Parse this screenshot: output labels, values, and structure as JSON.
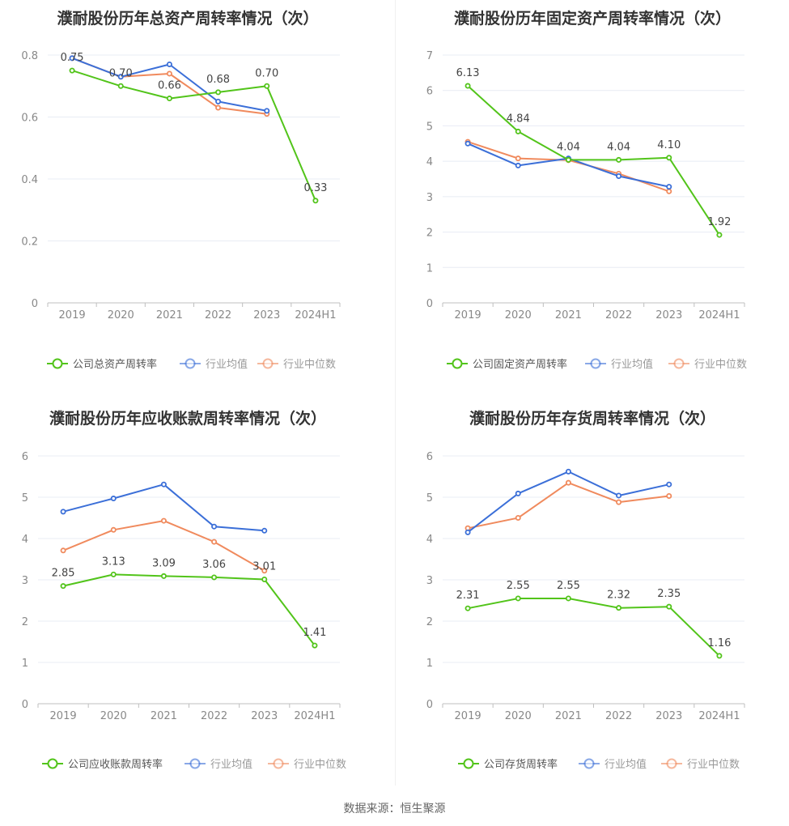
{
  "colors": {
    "company": "#52c41a",
    "industry_avg": "#3b6fd8",
    "industry_median": "#f08a5d",
    "grid": "#e8ecf4",
    "axis_text": "#888888",
    "title": "#333333"
  },
  "footer": {
    "source": "数据来源：恒生聚源"
  },
  "chart_data": [
    {
      "type": "line",
      "title": "濮耐股份历年总资产周转率情况（次）",
      "categories": [
        "2019",
        "2020",
        "2021",
        "2022",
        "2023",
        "2024H1"
      ],
      "ylim": [
        0,
        0.8
      ],
      "yticks": [
        0,
        0.2,
        0.4,
        0.6,
        0.8
      ],
      "ytick_labels": [
        "0",
        "0.2",
        "0.4",
        "0.6",
        "0.8"
      ],
      "series": [
        {
          "name": "公司总资产周转率",
          "role": "company",
          "values": [
            0.75,
            0.7,
            0.66,
            0.68,
            0.7,
            0.33
          ],
          "labels": [
            "0.75",
            "0.70",
            "0.66",
            "0.68",
            "0.70",
            "0.33"
          ]
        },
        {
          "name": "行业均值",
          "role": "avg",
          "values": [
            0.79,
            0.73,
            0.77,
            0.65,
            0.62,
            null
          ]
        },
        {
          "name": "行业中位数",
          "role": "median",
          "values": [
            0.79,
            0.73,
            0.74,
            0.63,
            0.61,
            null
          ]
        }
      ]
    },
    {
      "type": "line",
      "title": "濮耐股份历年固定资产周转率情况（次）",
      "categories": [
        "2019",
        "2020",
        "2021",
        "2022",
        "2023",
        "2024H1"
      ],
      "ylim": [
        0,
        7
      ],
      "yticks": [
        0,
        1,
        2,
        3,
        4,
        5,
        6,
        7
      ],
      "ytick_labels": [
        "0",
        "1",
        "2",
        "3",
        "4",
        "5",
        "6",
        "7"
      ],
      "series": [
        {
          "name": "公司固定资产周转率",
          "role": "company",
          "values": [
            6.13,
            4.84,
            4.04,
            4.04,
            4.1,
            1.92
          ],
          "labels": [
            "6.13",
            "4.84",
            "4.04",
            "4.04",
            "4.10",
            "1.92"
          ]
        },
        {
          "name": "行业均值",
          "role": "avg",
          "values": [
            4.5,
            3.88,
            4.08,
            3.58,
            3.28,
            null
          ]
        },
        {
          "name": "行业中位数",
          "role": "median",
          "values": [
            4.55,
            4.08,
            4.03,
            3.65,
            3.15,
            null
          ]
        }
      ]
    },
    {
      "type": "line",
      "title": "濮耐股份历年应收账款周转率情况（次）",
      "categories": [
        "2019",
        "2020",
        "2021",
        "2022",
        "2023",
        "2024H1"
      ],
      "ylim": [
        0,
        6
      ],
      "yticks": [
        0,
        1,
        2,
        3,
        4,
        5,
        6
      ],
      "ytick_labels": [
        "0",
        "1",
        "2",
        "3",
        "4",
        "5",
        "6"
      ],
      "series": [
        {
          "name": "公司应收账款周转率",
          "role": "company",
          "values": [
            2.85,
            3.13,
            3.09,
            3.06,
            3.01,
            1.41
          ],
          "labels": [
            "2.85",
            "3.13",
            "3.09",
            "3.06",
            "3.01",
            "1.41"
          ]
        },
        {
          "name": "行业均值",
          "role": "avg",
          "values": [
            4.65,
            4.97,
            5.31,
            4.29,
            4.19,
            null
          ]
        },
        {
          "name": "行业中位数",
          "role": "median",
          "values": [
            3.71,
            4.21,
            4.43,
            3.92,
            3.22,
            null
          ]
        }
      ]
    },
    {
      "type": "line",
      "title": "濮耐股份历年存货周转率情况（次）",
      "categories": [
        "2019",
        "2020",
        "2021",
        "2022",
        "2023",
        "2024H1"
      ],
      "ylim": [
        0,
        6
      ],
      "yticks": [
        0,
        1,
        2,
        3,
        4,
        5,
        6
      ],
      "ytick_labels": [
        "0",
        "1",
        "2",
        "3",
        "4",
        "5",
        "6"
      ],
      "series": [
        {
          "name": "公司存货周转率",
          "role": "company",
          "values": [
            2.31,
            2.55,
            2.55,
            2.32,
            2.35,
            1.16
          ],
          "labels": [
            "2.31",
            "2.55",
            "2.55",
            "2.32",
            "2.35",
            "1.16"
          ]
        },
        {
          "name": "行业均值",
          "role": "avg",
          "values": [
            4.15,
            5.09,
            5.62,
            5.04,
            5.31,
            null
          ]
        },
        {
          "name": "行业中位数",
          "role": "median",
          "values": [
            4.25,
            4.5,
            5.35,
            4.88,
            5.03,
            null
          ]
        }
      ]
    }
  ]
}
